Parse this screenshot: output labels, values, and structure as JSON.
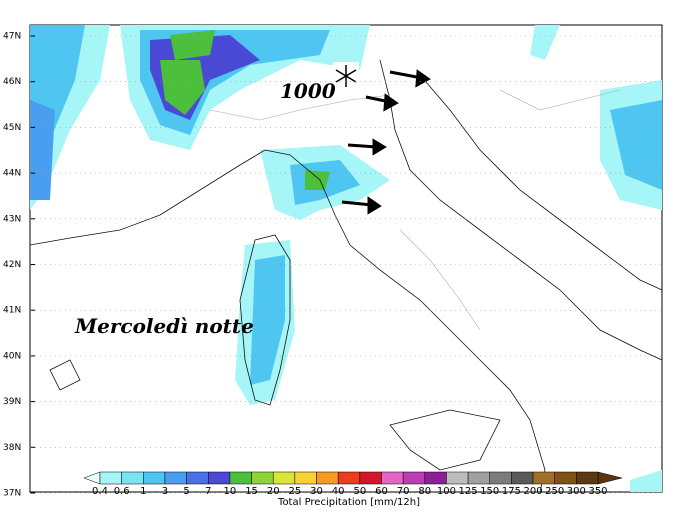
{
  "lat_labels": [
    "47N",
    "46N",
    "45N",
    "44N",
    "43N",
    "42N",
    "41N",
    "40N",
    "39N",
    "38N",
    "37N"
  ],
  "annotations": {
    "level": "1000",
    "caption": "Mercoledì notte"
  },
  "legend": {
    "title": "Total Precipitation [mm/12h]",
    "under_color": "#e8fcfc",
    "over_color": "#5a3510",
    "labels": [
      0.4,
      0.6,
      1,
      3,
      5,
      7,
      10,
      15,
      20,
      25,
      30,
      40,
      50,
      60,
      70,
      80,
      100,
      125,
      150,
      175,
      200,
      250,
      300,
      350
    ],
    "colors": [
      "#a6f6f8",
      "#78e6f2",
      "#4fc6f2",
      "#4a9ef0",
      "#4a6fe6",
      "#4b49d6",
      "#4cbf3c",
      "#8fd23a",
      "#d8e63a",
      "#f7d230",
      "#f59a25",
      "#ee3c1f",
      "#d4152a",
      "#e565c6",
      "#bc3eb0",
      "#8c1e96",
      "#bdbdbd",
      "#a0a0a0",
      "#7c7c7c",
      "#5a5a5a",
      "#a0702a",
      "#7d5118",
      "#5c3a10"
    ]
  }
}
